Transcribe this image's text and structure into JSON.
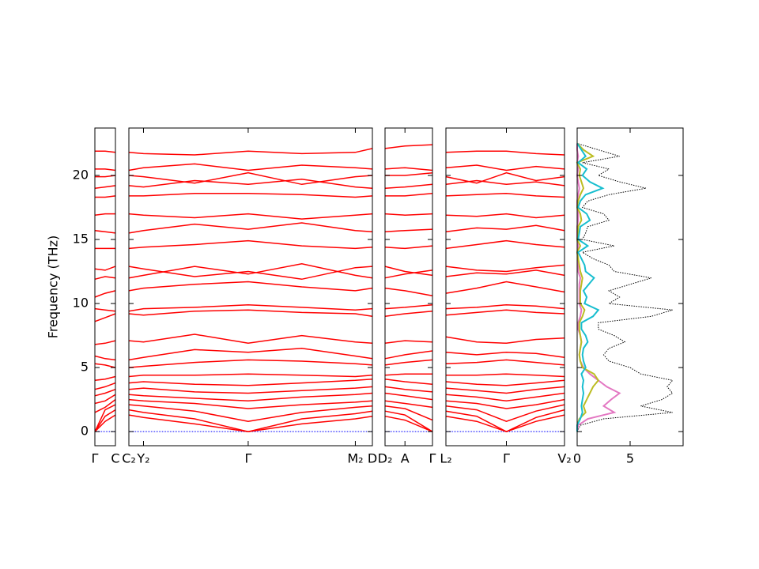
{
  "chart_data": [
    {
      "type": "line",
      "ylabel": "Frequency (THz)",
      "ylim": [
        -1.1,
        23.7
      ],
      "yticks": [
        0,
        5,
        10,
        15,
        20
      ],
      "xlim": [
        0,
        1
      ],
      "xticks": [
        {
          "value": 0,
          "label": "Γ"
        },
        {
          "value": 1,
          "label": "C"
        }
      ],
      "color": "#ff0000",
      "hline": 0,
      "hline_color": "#0000ff",
      "x": [
        0,
        0.5,
        1
      ],
      "bands": [
        [
          0,
          0.8,
          1.3
        ],
        [
          0,
          1.2,
          1.7
        ],
        [
          0,
          1.7,
          2.1
        ],
        [
          1.5,
          1.9,
          2.5
        ],
        [
          2.2,
          2.4,
          2.9
        ],
        [
          2.8,
          3.0,
          3.3
        ],
        [
          3.3,
          3.5,
          3.8
        ],
        [
          4.0,
          4.1,
          4.3
        ],
        [
          5.3,
          5.2,
          5.0
        ],
        [
          5.9,
          5.7,
          5.6
        ],
        [
          6.8,
          6.9,
          7.1
        ],
        [
          8.6,
          8.9,
          9.2
        ],
        [
          9.6,
          9.5,
          9.4
        ],
        [
          10.5,
          10.8,
          11.0
        ],
        [
          11.9,
          12.1,
          12.0
        ],
        [
          12.7,
          12.6,
          12.9
        ],
        [
          14.3,
          14.3,
          14.3
        ],
        [
          15.7,
          15.6,
          15.5
        ],
        [
          16.9,
          17.0,
          17.0
        ],
        [
          18.3,
          18.3,
          18.4
        ],
        [
          19.0,
          19.1,
          19.2
        ],
        [
          19.9,
          19.9,
          20.0
        ],
        [
          20.5,
          20.5,
          20.4
        ],
        [
          21.9,
          21.9,
          21.8
        ]
      ]
    },
    {
      "type": "line",
      "xlim": [
        0,
        1
      ],
      "xticks": [
        {
          "value": 0,
          "label": "C₂"
        },
        {
          "value": 0.06,
          "label": "Y₂"
        },
        {
          "value": 0.49,
          "label": "Γ"
        },
        {
          "value": 0.93,
          "label": "M₂"
        },
        {
          "value": 1,
          "label": "D"
        }
      ],
      "color": "#ff0000",
      "hline": 0,
      "hline_color": "#0000ff",
      "x": [
        0,
        0.06,
        0.27,
        0.49,
        0.71,
        0.93,
        1
      ],
      "bands": [
        [
          1.3,
          1.1,
          0.6,
          0,
          0.6,
          1.0,
          1.2
        ],
        [
          1.7,
          1.5,
          1.0,
          0,
          1.0,
          1.4,
          1.6
        ],
        [
          2.1,
          2.0,
          1.6,
          0.8,
          1.5,
          1.9,
          2.0
        ],
        [
          2.5,
          2.4,
          2.2,
          1.8,
          2.1,
          2.3,
          2.4
        ],
        [
          2.9,
          2.8,
          2.6,
          2.4,
          2.7,
          2.9,
          3.0
        ],
        [
          3.3,
          3.4,
          3.1,
          3.0,
          3.2,
          3.4,
          3.5
        ],
        [
          3.8,
          3.9,
          3.7,
          3.6,
          3.8,
          4.0,
          4.1
        ],
        [
          4.3,
          4.4,
          4.4,
          4.5,
          4.4,
          4.3,
          4.4
        ],
        [
          5.0,
          5.1,
          5.4,
          5.6,
          5.5,
          5.3,
          5.2
        ],
        [
          5.6,
          5.8,
          6.4,
          6.2,
          6.5,
          5.9,
          5.7
        ],
        [
          7.1,
          7.0,
          7.6,
          6.9,
          7.5,
          7.0,
          6.9
        ],
        [
          9.2,
          9.1,
          9.4,
          9.5,
          9.3,
          9.2,
          9.0
        ],
        [
          9.4,
          9.6,
          9.7,
          9.9,
          9.7,
          9.5,
          9.6
        ],
        [
          11.0,
          11.2,
          11.5,
          11.7,
          11.3,
          11.0,
          11.2
        ],
        [
          12.0,
          12.2,
          12.9,
          12.3,
          13.1,
          12.2,
          12.0
        ],
        [
          12.9,
          12.7,
          12.1,
          12.5,
          11.9,
          12.8,
          12.9
        ],
        [
          14.3,
          14.4,
          14.6,
          14.9,
          14.5,
          14.3,
          14.4
        ],
        [
          15.5,
          15.7,
          16.2,
          15.8,
          16.3,
          15.7,
          15.6
        ],
        [
          17.0,
          16.9,
          16.7,
          17.0,
          16.6,
          16.9,
          17.0
        ],
        [
          18.4,
          18.4,
          18.6,
          18.6,
          18.5,
          18.3,
          18.4
        ],
        [
          19.2,
          19.1,
          19.6,
          19.3,
          19.7,
          19.1,
          19.0
        ],
        [
          20.0,
          19.9,
          19.4,
          20.2,
          19.3,
          19.9,
          20.0
        ],
        [
          20.4,
          20.6,
          20.9,
          20.4,
          20.8,
          20.6,
          20.5
        ],
        [
          21.8,
          21.7,
          21.6,
          21.9,
          21.7,
          21.8,
          22.1
        ]
      ]
    },
    {
      "type": "line",
      "xlim": [
        0,
        1
      ],
      "xticks": [
        {
          "value": 0,
          "label": "D₂"
        },
        {
          "value": 0.42,
          "label": "A"
        },
        {
          "value": 1,
          "label": "Γ"
        }
      ],
      "color": "#ff0000",
      "hline": 0,
      "hline_color": "#0000ff",
      "x": [
        0,
        0.42,
        1
      ],
      "bands": [
        [
          1.2,
          0.9,
          0
        ],
        [
          1.6,
          1.3,
          0
        ],
        [
          2.0,
          1.8,
          0.9
        ],
        [
          2.4,
          2.2,
          1.9
        ],
        [
          3.0,
          2.8,
          2.5
        ],
        [
          3.5,
          3.3,
          3.1
        ],
        [
          4.1,
          3.9,
          3.7
        ],
        [
          4.4,
          4.5,
          4.5
        ],
        [
          5.2,
          5.4,
          5.6
        ],
        [
          5.7,
          6.0,
          6.3
        ],
        [
          6.9,
          7.1,
          7.0
        ],
        [
          9.0,
          9.2,
          9.4
        ],
        [
          9.6,
          9.7,
          9.9
        ],
        [
          11.2,
          11.0,
          10.6
        ],
        [
          12.0,
          12.3,
          12.6
        ],
        [
          12.9,
          12.5,
          12.2
        ],
        [
          14.4,
          14.3,
          14.5
        ],
        [
          15.6,
          15.7,
          15.8
        ],
        [
          17.0,
          16.9,
          17.0
        ],
        [
          18.4,
          18.4,
          18.6
        ],
        [
          19.0,
          19.1,
          19.3
        ],
        [
          20.0,
          20.0,
          20.2
        ],
        [
          20.5,
          20.6,
          20.4
        ],
        [
          22.1,
          22.3,
          22.4
        ]
      ]
    },
    {
      "type": "line",
      "xlim": [
        0,
        1
      ],
      "xticks": [
        {
          "value": 0,
          "label": "L₂"
        },
        {
          "value": 0.51,
          "label": "Γ"
        },
        {
          "value": 1,
          "label": "V₂"
        }
      ],
      "color": "#ff0000",
      "hline": 0,
      "hline_color": "#0000ff",
      "x": [
        0,
        0.26,
        0.51,
        0.76,
        1
      ],
      "bands": [
        [
          1.2,
          0.8,
          0,
          0.8,
          1.3
        ],
        [
          1.6,
          1.2,
          0,
          1.1,
          1.7
        ],
        [
          2.0,
          1.7,
          0.8,
          1.6,
          2.1
        ],
        [
          2.4,
          2.2,
          1.8,
          2.1,
          2.5
        ],
        [
          2.9,
          2.7,
          2.4,
          2.7,
          3.0
        ],
        [
          3.4,
          3.2,
          3.0,
          3.3,
          3.5
        ],
        [
          3.9,
          3.7,
          3.6,
          3.8,
          4.0
        ],
        [
          4.4,
          4.4,
          4.5,
          4.4,
          4.3
        ],
        [
          5.3,
          5.4,
          5.6,
          5.4,
          5.2
        ],
        [
          6.2,
          6.0,
          6.2,
          6.1,
          5.8
        ],
        [
          7.4,
          7.0,
          6.9,
          7.2,
          7.3
        ],
        [
          9.1,
          9.3,
          9.5,
          9.3,
          9.2
        ],
        [
          9.6,
          9.7,
          9.9,
          9.8,
          9.6
        ],
        [
          10.8,
          11.2,
          11.7,
          11.3,
          10.9
        ],
        [
          12.1,
          12.4,
          12.3,
          12.6,
          12.2
        ],
        [
          12.9,
          12.6,
          12.5,
          12.8,
          13.0
        ],
        [
          14.3,
          14.6,
          14.9,
          14.6,
          14.4
        ],
        [
          15.6,
          15.9,
          15.8,
          16.1,
          15.7
        ],
        [
          16.9,
          16.8,
          17.0,
          16.7,
          16.9
        ],
        [
          18.4,
          18.5,
          18.6,
          18.4,
          18.3
        ],
        [
          19.3,
          19.6,
          19.3,
          19.5,
          19.2
        ],
        [
          19.9,
          19.4,
          20.2,
          19.6,
          19.9
        ],
        [
          20.6,
          20.8,
          20.4,
          20.7,
          20.5
        ],
        [
          21.8,
          21.9,
          21.9,
          21.7,
          21.6
        ]
      ]
    },
    {
      "type": "line",
      "orientation": "horizontal",
      "xlim": [
        0,
        10
      ],
      "xticks": [
        0,
        5
      ],
      "y": [
        0,
        0.5,
        1,
        1.5,
        2,
        2.5,
        3,
        3.5,
        4,
        4.5,
        5,
        5.5,
        6,
        6.5,
        7,
        7.5,
        8,
        8.5,
        9,
        9.5,
        10,
        10.5,
        11,
        11.5,
        12,
        12.5,
        13,
        13.5,
        14,
        14.5,
        15,
        15.5,
        16,
        16.5,
        17,
        17.5,
        18,
        18.5,
        19,
        19.5,
        20,
        20.5,
        21,
        21.5,
        22,
        22.5
      ],
      "series": [
        {
          "color": "#000000",
          "dashed": true,
          "values": [
            0,
            0.3,
            2.5,
            9,
            6,
            8,
            9,
            8.5,
            9,
            6,
            5,
            3,
            2.5,
            3,
            4.5,
            3.5,
            2,
            2,
            7,
            9,
            3,
            4,
            3,
            5,
            7,
            3.5,
            3,
            1.5,
            0.5,
            3.5,
            0.5,
            0.8,
            1,
            3,
            2.5,
            0.5,
            1,
            3,
            6.5,
            4,
            2,
            3,
            0.5,
            4,
            2,
            0
          ]
        },
        {
          "color": "#e377c2",
          "values": [
            0,
            0.1,
            1.0,
            3.5,
            2.5,
            3.2,
            4.0,
            2.8,
            2.0,
            1.2,
            0.6,
            0.3,
            0.2,
            0.3,
            0.4,
            0.3,
            0.1,
            0.1,
            0.3,
            0.4,
            0.2,
            0.2,
            0.2,
            0.2,
            0.3,
            0.1,
            0.1,
            0.1,
            0,
            0.1,
            0,
            0,
            0,
            0.1,
            0.1,
            0,
            0,
            0.1,
            0.2,
            0.1,
            0,
            0.1,
            0,
            0.1,
            0,
            0
          ]
        },
        {
          "color": "#bcbd22",
          "values": [
            0,
            0,
            0.2,
            0.8,
            0.6,
            0.9,
            1.2,
            1.5,
            2.0,
            1.6,
            0.5,
            0.3,
            0.2,
            0.3,
            0.4,
            0.3,
            0.2,
            0.2,
            0.5,
            0.7,
            0.3,
            0.3,
            0.3,
            0.4,
            0.5,
            0.3,
            0.2,
            0.1,
            0,
            0.3,
            0,
            0.1,
            0.1,
            0.4,
            0.3,
            0,
            0.1,
            0.3,
            0.6,
            0.4,
            0.2,
            0.3,
            0,
            1.5,
            0.6,
            0
          ]
        },
        {
          "color": "#17becf",
          "values": [
            0,
            0,
            0.3,
            0.5,
            0.4,
            0.5,
            0.6,
            0.5,
            0.6,
            0.4,
            0.8,
            0.6,
            0.5,
            0.6,
            1.0,
            0.8,
            0.4,
            0.4,
            1.5,
            2.0,
            0.7,
            0.9,
            0.6,
            1.1,
            1.6,
            0.8,
            0.7,
            0.4,
            0.1,
            1.0,
            0.1,
            0.2,
            0.3,
            1.2,
            0.9,
            0.1,
            0.3,
            0.8,
            2.4,
            1.2,
            0.5,
            0.9,
            0.1,
            0.8,
            0.4,
            0
          ]
        }
      ]
    }
  ]
}
